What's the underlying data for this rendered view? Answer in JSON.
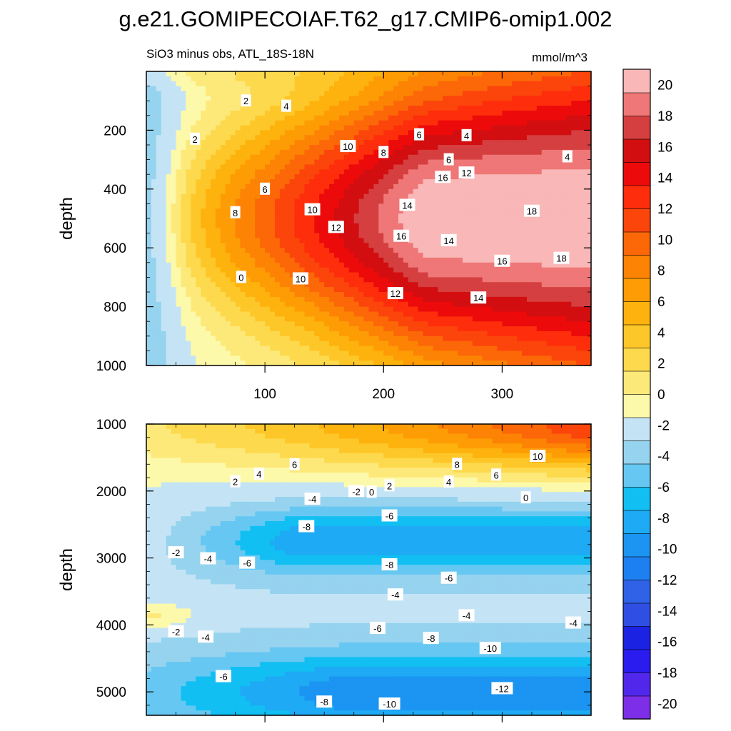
{
  "title": "g.e21.GOMIPECOIAF.T62_g17.CMIP6-omip1.002",
  "subtitle_left": "SiO3 minus obs, ATL_18S-18N",
  "subtitle_right": "mmol/m^3",
  "chart_data": {
    "type": "heatmap",
    "x": {
      "label": "",
      "range": [
        0,
        375
      ],
      "ticks": [
        100,
        200,
        300
      ],
      "tick_labels": [
        "100",
        "200",
        "300"
      ]
    },
    "colorbar": {
      "levels": [
        -22,
        -20,
        -18,
        -16,
        -14,
        -12,
        -10,
        -8,
        -6,
        -4,
        -2,
        0,
        2,
        4,
        6,
        8,
        10,
        12,
        14,
        16,
        18,
        20,
        22
      ],
      "tick_values": [
        -20,
        -18,
        -16,
        -14,
        -12,
        -10,
        -8,
        -6,
        -4,
        -2,
        0,
        2,
        4,
        6,
        8,
        10,
        12,
        14,
        16,
        18,
        20
      ],
      "tick_labels": [
        "-20",
        "-18",
        "-16",
        "-14",
        "-12",
        "-10",
        "-8",
        "-6",
        "-4",
        "-2",
        "0",
        "2",
        "4",
        "6",
        "8",
        "10",
        "12",
        "14",
        "16",
        "18",
        "20"
      ],
      "colors": [
        "#7d2fe8",
        "#5227ec",
        "#2a1bef",
        "#1b22e2",
        "#2e4fe2",
        "#2f62e6",
        "#1e7ff0",
        "#1b94f2",
        "#1eaaf4",
        "#12bff2",
        "#66c8f2",
        "#96d3ef",
        "#c4e4f6",
        "#fdf9aa",
        "#fde97a",
        "#fdd94e",
        "#fec729",
        "#fdb20d",
        "#fe9c05",
        "#fd8304",
        "#fc6708",
        "#fb450b",
        "#fe2d0b",
        "#ec0a0a",
        "#d20e10",
        "#d53f40",
        "#ef7777",
        "#f9b7b7"
      ]
    },
    "panels": [
      {
        "name": "upper",
        "ylabel": "depth",
        "y_range": [
          0,
          1000
        ],
        "y_ticks": [
          200,
          400,
          600,
          800,
          1000
        ],
        "y_tick_labels": [
          "200",
          "400",
          "600",
          "800",
          "1000"
        ],
        "contour_labels": [
          {
            "x": 41,
            "y": 230,
            "text": "2"
          },
          {
            "x": 84,
            "y": 100,
            "text": "2"
          },
          {
            "x": 118,
            "y": 118,
            "text": "4"
          },
          {
            "x": 355,
            "y": 290,
            "text": "4"
          },
          {
            "x": 100,
            "y": 400,
            "text": "6"
          },
          {
            "x": 230,
            "y": 215,
            "text": "6"
          },
          {
            "x": 270,
            "y": 218,
            "text": "4"
          },
          {
            "x": 75,
            "y": 480,
            "text": "8"
          },
          {
            "x": 170,
            "y": 255,
            "text": "10"
          },
          {
            "x": 200,
            "y": 275,
            "text": "8"
          },
          {
            "x": 255,
            "y": 300,
            "text": "6"
          },
          {
            "x": 140,
            "y": 470,
            "text": "10"
          },
          {
            "x": 270,
            "y": 345,
            "text": "12"
          },
          {
            "x": 160,
            "y": 530,
            "text": "12"
          },
          {
            "x": 220,
            "y": 455,
            "text": "14"
          },
          {
            "x": 215,
            "y": 560,
            "text": "16"
          },
          {
            "x": 250,
            "y": 360,
            "text": "16"
          },
          {
            "x": 255,
            "y": 575,
            "text": "14"
          },
          {
            "x": 325,
            "y": 475,
            "text": "18"
          },
          {
            "x": 350,
            "y": 635,
            "text": "18"
          },
          {
            "x": 300,
            "y": 645,
            "text": "16"
          },
          {
            "x": 130,
            "y": 705,
            "text": "10"
          },
          {
            "x": 210,
            "y": 755,
            "text": "12"
          },
          {
            "x": 280,
            "y": 770,
            "text": "14"
          },
          {
            "x": 80,
            "y": 700,
            "text": "0"
          }
        ]
      },
      {
        "name": "lower",
        "ylabel": "depth",
        "y_range": [
          1000,
          5350
        ],
        "y_ticks": [
          1000,
          2000,
          3000,
          4000,
          5000
        ],
        "y_tick_labels": [
          "1000",
          "2000",
          "3000",
          "4000",
          "5000"
        ],
        "contour_labels": [
          {
            "x": 75,
            "y": 1860,
            "text": "2"
          },
          {
            "x": 95,
            "y": 1745,
            "text": "4"
          },
          {
            "x": 125,
            "y": 1605,
            "text": "6"
          },
          {
            "x": 177,
            "y": 2005,
            "text": "-2"
          },
          {
            "x": 190,
            "y": 2015,
            "text": "0"
          },
          {
            "x": 205,
            "y": 1920,
            "text": "2"
          },
          {
            "x": 255,
            "y": 1865,
            "text": "4"
          },
          {
            "x": 262,
            "y": 1600,
            "text": "8"
          },
          {
            "x": 295,
            "y": 1760,
            "text": "6"
          },
          {
            "x": 330,
            "y": 1480,
            "text": "10"
          },
          {
            "x": 320,
            "y": 2100,
            "text": "0"
          },
          {
            "x": 140,
            "y": 2120,
            "text": "-4"
          },
          {
            "x": 205,
            "y": 2370,
            "text": "-6"
          },
          {
            "x": 135,
            "y": 2530,
            "text": "-8"
          },
          {
            "x": 25,
            "y": 2920,
            "text": "-2"
          },
          {
            "x": 52,
            "y": 3010,
            "text": "-4"
          },
          {
            "x": 85,
            "y": 3075,
            "text": "-6"
          },
          {
            "x": 205,
            "y": 3100,
            "text": "-8"
          },
          {
            "x": 255,
            "y": 3300,
            "text": "-6"
          },
          {
            "x": 210,
            "y": 3550,
            "text": "-4"
          },
          {
            "x": 270,
            "y": 3860,
            "text": "-4"
          },
          {
            "x": 360,
            "y": 3970,
            "text": "-4"
          },
          {
            "x": 25,
            "y": 4100,
            "text": "-2"
          },
          {
            "x": 50,
            "y": 4180,
            "text": "-4"
          },
          {
            "x": 195,
            "y": 4050,
            "text": "-6"
          },
          {
            "x": 240,
            "y": 4200,
            "text": "-8"
          },
          {
            "x": 290,
            "y": 4350,
            "text": "-10"
          },
          {
            "x": 300,
            "y": 4950,
            "text": "-12"
          },
          {
            "x": 65,
            "y": 4770,
            "text": "-6"
          },
          {
            "x": 150,
            "y": 5150,
            "text": "-8"
          },
          {
            "x": 205,
            "y": 5180,
            "text": "-10"
          }
        ]
      }
    ]
  }
}
